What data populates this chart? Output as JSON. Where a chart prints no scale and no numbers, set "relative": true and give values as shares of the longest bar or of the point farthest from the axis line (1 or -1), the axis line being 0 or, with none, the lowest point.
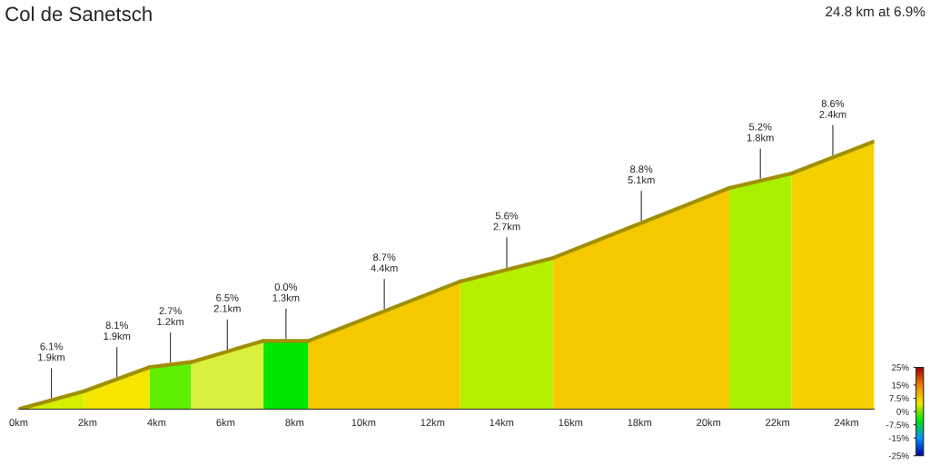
{
  "chart_data": {
    "type": "area",
    "title": "Col de Sanetsch",
    "subtitle": "24.8 km at 6.9%",
    "relative": true,
    "xlim": [
      0,
      24.8
    ],
    "xticks": [
      {
        "value": 0,
        "label": "0km"
      },
      {
        "value": 2,
        "label": "2km"
      },
      {
        "value": 4,
        "label": "4km"
      },
      {
        "value": 6,
        "label": "6km"
      },
      {
        "value": 8,
        "label": "8km"
      },
      {
        "value": 10,
        "label": "10km"
      },
      {
        "value": 12,
        "label": "12km"
      },
      {
        "value": 14,
        "label": "14km"
      },
      {
        "value": 16,
        "label": "16km"
      },
      {
        "value": 18,
        "label": "18km"
      },
      {
        "value": 20,
        "label": "20km"
      },
      {
        "value": 22,
        "label": "22km"
      },
      {
        "value": 24,
        "label": "24km"
      }
    ],
    "series": [
      {
        "x": [
          0,
          1.9
        ],
        "values": [
          0,
          0.067
        ],
        "color": "#d4ef00"
      },
      {
        "x": [
          1.9,
          3.8
        ],
        "values": [
          0.067,
          0.157
        ],
        "color": "#f5e600"
      },
      {
        "x": [
          3.8,
          5.0
        ],
        "values": [
          0.157,
          0.176
        ],
        "color": "#5ef000"
      },
      {
        "x": [
          5.0,
          7.1
        ],
        "values": [
          0.176,
          0.255
        ],
        "color": "#d9f03c"
      },
      {
        "x": [
          7.1,
          8.4
        ],
        "values": [
          0.255,
          0.255
        ],
        "color": "#00e600"
      },
      {
        "x": [
          8.4,
          12.8
        ],
        "values": [
          0.255,
          0.477
        ],
        "color": "#f5c800"
      },
      {
        "x": [
          12.8,
          15.5
        ],
        "values": [
          0.477,
          0.565
        ],
        "color": "#b6f000"
      },
      {
        "x": [
          15.5,
          20.6
        ],
        "values": [
          0.565,
          0.826
        ],
        "color": "#f5c800"
      },
      {
        "x": [
          20.6,
          22.4
        ],
        "values": [
          0.826,
          0.88
        ],
        "color": "#a8f000"
      },
      {
        "x": [
          22.4,
          24.8
        ],
        "values": [
          0.88,
          1.0
        ],
        "color": "#f5d000"
      }
    ],
    "annotations": [
      {
        "text": "6.1%\n1.9km",
        "x": 0.95,
        "y": 0.033
      },
      {
        "text": "8.1%\n1.9km",
        "x": 2.85,
        "y": 0.112
      },
      {
        "text": "2.7%\n1.2km",
        "x": 4.4,
        "y": 0.166
      },
      {
        "text": "6.5%\n2.1km",
        "x": 6.05,
        "y": 0.215
      },
      {
        "text": "0.0%\n1.3km",
        "x": 7.75,
        "y": 0.255
      },
      {
        "text": "8.7%\n4.4km",
        "x": 10.6,
        "y": 0.366
      },
      {
        "text": "5.6%\n2.7km",
        "x": 14.15,
        "y": 0.521
      },
      {
        "text": "8.8%\n5.1km",
        "x": 18.05,
        "y": 0.695
      },
      {
        "text": "5.2%\n1.8km",
        "x": 21.5,
        "y": 0.853
      },
      {
        "text": "8.6%\n2.4km",
        "x": 23.6,
        "y": 0.94
      }
    ],
    "clim": [
      -25,
      25
    ],
    "cticks": [
      {
        "value": 25,
        "label": "25%"
      },
      {
        "value": 15,
        "label": "15%"
      },
      {
        "value": 7.5,
        "label": "7.5%"
      },
      {
        "value": 0,
        "label": "0%"
      },
      {
        "value": -7.5,
        "label": "-7.5%"
      },
      {
        "value": -15,
        "label": "-15%"
      },
      {
        "value": -25,
        "label": "-25%"
      }
    ],
    "grid": false
  }
}
